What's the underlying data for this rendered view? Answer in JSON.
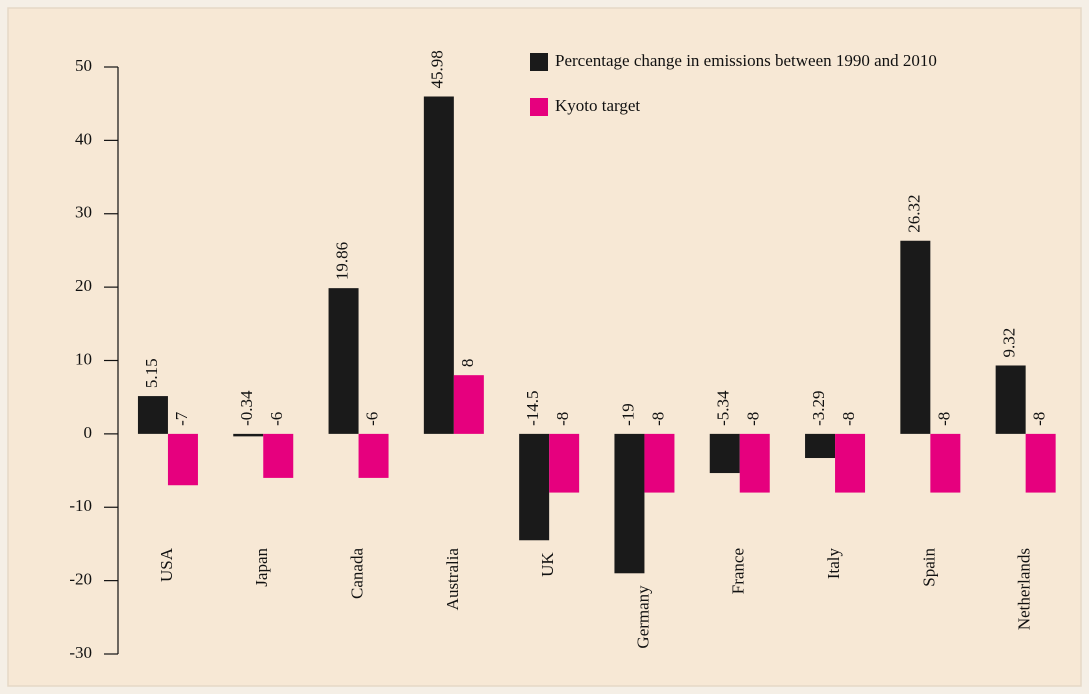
{
  "chart_data": {
    "type": "bar",
    "categories": [
      "USA",
      "Japan",
      "Canada",
      "Australia",
      "UK",
      "Germany",
      "France",
      "Italy",
      "Spain",
      "Netherlands"
    ],
    "series": [
      {
        "name": "Percentage change in emissions between 1990 and 2010",
        "color": "#1a1a1a",
        "values": [
          5.15,
          -0.34,
          19.86,
          45.98,
          -14.5,
          -19,
          -5.34,
          -3.29,
          26.32,
          9.32
        ]
      },
      {
        "name": "Kyoto target",
        "color": "#e6007e",
        "values": [
          -7,
          -6,
          -6,
          8,
          -8,
          -8,
          -8,
          -8,
          -8,
          -8
        ]
      }
    ],
    "ylim": [
      -30,
      50
    ],
    "yticks": [
      -30,
      -20,
      -10,
      0,
      10,
      20,
      30,
      40,
      50
    ],
    "legend": "upper right"
  }
}
